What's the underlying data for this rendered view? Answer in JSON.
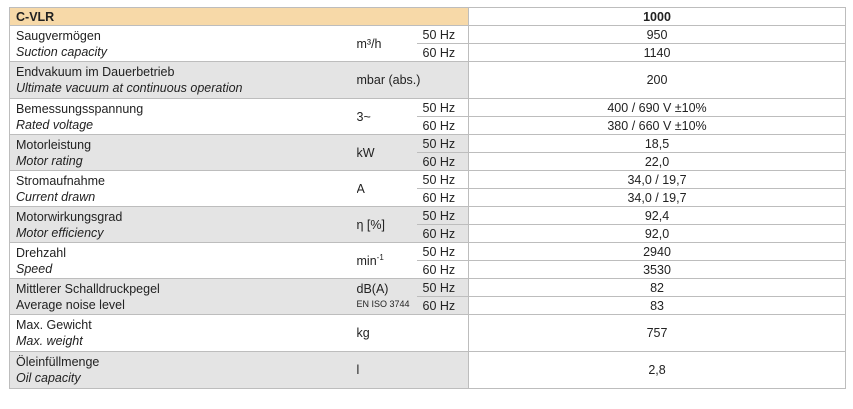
{
  "header": {
    "model": "C-VLR",
    "column": "1000"
  },
  "rows": [
    {
      "de": "Saugvermögen",
      "en": "Suction capacity",
      "unit": "m³/h",
      "f1": "50 Hz",
      "v1": "950",
      "f2": "60 Hz",
      "v2": "1140"
    },
    {
      "de": "Endvakuum im Dauerbetrieb",
      "en": "Ultimate vacuum at continuous operation",
      "unit": "mbar (abs.)",
      "v": "200"
    },
    {
      "de": "Bemessungsspannung",
      "en": "Rated voltage",
      "unit": "3~",
      "f1": "50 Hz",
      "v1": "400 / 690 V ±10%",
      "f2": "60 Hz",
      "v2": "380 / 660 V ±10%"
    },
    {
      "de": "Motorleistung",
      "en": "Motor rating",
      "unit": "kW",
      "f1": "50 Hz",
      "v1": "18,5",
      "f2": "60 Hz",
      "v2": "22,0"
    },
    {
      "de": "Stromaufnahme",
      "en": "Current drawn",
      "unit": "A",
      "f1": "50 Hz",
      "v1": "34,0 / 19,7",
      "f2": "60 Hz",
      "v2": "34,0 / 19,7"
    },
    {
      "de": "Motorwirkungsgrad",
      "en": "Motor efficiency",
      "unit": "η [%]",
      "f1": "50 Hz",
      "v1": "92,4",
      "f2": "60 Hz",
      "v2": "92,0"
    },
    {
      "de": "Drehzahl",
      "en": "Speed",
      "unit": "min",
      "unit_sup": "-1",
      "f1": "50 Hz",
      "v1": "2940",
      "f2": "60 Hz",
      "v2": "3530"
    },
    {
      "de": "Mittlerer Schalldruckpegel",
      "en": "Average noise level",
      "unit": "dB(A)",
      "unit_note": "EN ISO 3744",
      "f1": "50 Hz",
      "v1": "82",
      "f2": "60 Hz",
      "v2": "83"
    },
    {
      "de": "Max. Gewicht",
      "en": "Max. weight",
      "unit": "kg",
      "v": "757"
    },
    {
      "de": "Öleinfüllmenge",
      "en": "Oil capacity",
      "unit": "l",
      "v": "2,8"
    }
  ]
}
